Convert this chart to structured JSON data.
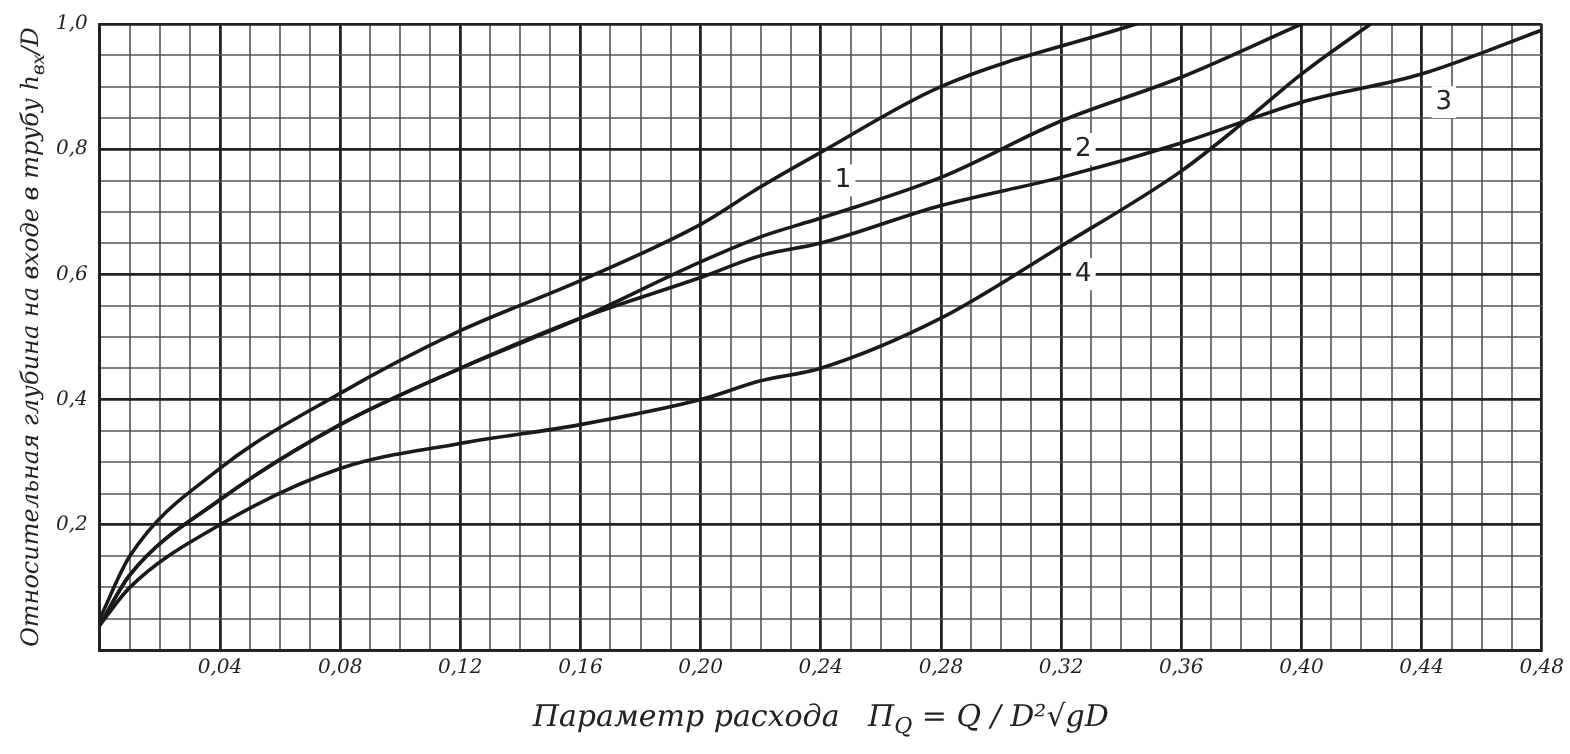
{
  "chart_data": {
    "type": "line",
    "xlabel": "Параметр расхода   П$_{Q}$ = Q / D²√gD",
    "ylabel": "Относительная глубина на входе в трубу h$_{вх}$/D",
    "series": [
      {
        "color": "#1a1a1a",
        "x": [
          0,
          0.01,
          0.04,
          0.08,
          0.12,
          0.16,
          0.2,
          0.22,
          0.24,
          0.28,
          0.345
        ],
        "values": [
          0.05,
          0.15,
          0.29,
          0.41,
          0.51,
          0.59,
          0.68,
          0.74,
          0.795,
          0.9,
          1.0
        ]
      },
      {
        "color": "#1a1a1a",
        "x": [
          0,
          0.01,
          0.04,
          0.08,
          0.12,
          0.16,
          0.2,
          0.22,
          0.24,
          0.28,
          0.32,
          0.36,
          0.4
        ],
        "values": [
          0.04,
          0.12,
          0.24,
          0.36,
          0.45,
          0.53,
          0.62,
          0.66,
          0.69,
          0.755,
          0.845,
          0.915,
          1.0
        ]
      },
      {
        "color": "#1a1a1a",
        "x": [
          0,
          0.01,
          0.04,
          0.08,
          0.12,
          0.16,
          0.2,
          0.22,
          0.24,
          0.28,
          0.32,
          0.36,
          0.4,
          0.44,
          0.48
        ],
        "values": [
          0.04,
          0.12,
          0.24,
          0.36,
          0.45,
          0.53,
          0.595,
          0.63,
          0.65,
          0.71,
          0.755,
          0.81,
          0.875,
          0.92,
          0.99
        ]
      },
      {
        "color": "#1a1a1a",
        "x": [
          0,
          0.01,
          0.04,
          0.08,
          0.12,
          0.16,
          0.2,
          0.22,
          0.24,
          0.28,
          0.32,
          0.36,
          0.38,
          0.4,
          0.423
        ],
        "values": [
          0.04,
          0.1,
          0.2,
          0.29,
          0.33,
          0.36,
          0.4,
          0.43,
          0.45,
          0.53,
          0.645,
          0.765,
          0.84,
          0.92,
          1.0
        ]
      }
    ],
    "annotations": [
      {
        "text": "1",
        "x": 0.24,
        "y": 0.795
      },
      {
        "text": "2",
        "x": 0.32,
        "y": 0.845
      },
      {
        "text": "3",
        "x": 0.44,
        "y": 0.92
      },
      {
        "text": "4",
        "x": 0.32,
        "y": 0.645
      }
    ],
    "xlim": [
      0,
      0.48
    ],
    "ylim": [
      0,
      1.0
    ],
    "xticks": [
      {
        "value": 0,
        "label": null
      },
      {
        "value": 0.01,
        "label": null
      },
      {
        "value": 0.02,
        "label": null
      },
      {
        "value": 0.03,
        "label": null
      },
      {
        "value": 0.04,
        "label": "0,04"
      },
      {
        "value": 0.05,
        "label": null
      },
      {
        "value": 0.06,
        "label": null
      },
      {
        "value": 0.07,
        "label": null
      },
      {
        "value": 0.08,
        "label": "0,08"
      },
      {
        "value": 0.09,
        "label": null
      },
      {
        "value": 0.1,
        "label": null
      },
      {
        "value": 0.11,
        "label": null
      },
      {
        "value": 0.12,
        "label": "0,12"
      },
      {
        "value": 0.13,
        "label": null
      },
      {
        "value": 0.14,
        "label": null
      },
      {
        "value": 0.15,
        "label": null
      },
      {
        "value": 0.16,
        "label": "0,16"
      },
      {
        "value": 0.17,
        "label": null
      },
      {
        "value": 0.18,
        "label": null
      },
      {
        "value": 0.19,
        "label": null
      },
      {
        "value": 0.2,
        "label": "0,20"
      },
      {
        "value": 0.21,
        "label": null
      },
      {
        "value": 0.22,
        "label": null
      },
      {
        "value": 0.23,
        "label": null
      },
      {
        "value": 0.24,
        "label": "0,24"
      },
      {
        "value": 0.25,
        "label": null
      },
      {
        "value": 0.26,
        "label": null
      },
      {
        "value": 0.27,
        "label": null
      },
      {
        "value": 0.28,
        "label": "0,28"
      },
      {
        "value": 0.29,
        "label": null
      },
      {
        "value": 0.3,
        "label": null
      },
      {
        "value": 0.31,
        "label": null
      },
      {
        "value": 0.32,
        "label": "0,32"
      },
      {
        "value": 0.33,
        "label": null
      },
      {
        "value": 0.34,
        "label": null
      },
      {
        "value": 0.35,
        "label": null
      },
      {
        "value": 0.36,
        "label": "0,36"
      },
      {
        "value": 0.37,
        "label": null
      },
      {
        "value": 0.38,
        "label": null
      },
      {
        "value": 0.39,
        "label": null
      },
      {
        "value": 0.4,
        "label": "0,40"
      },
      {
        "value": 0.41,
        "label": null
      },
      {
        "value": 0.42,
        "label": null
      },
      {
        "value": 0.43,
        "label": null
      },
      {
        "value": 0.44,
        "label": "0,44"
      },
      {
        "value": 0.45,
        "label": null
      },
      {
        "value": 0.46,
        "label": null
      },
      {
        "value": 0.47,
        "label": null
      },
      {
        "value": 0.48,
        "label": "0,48"
      }
    ],
    "yticks": [
      {
        "value": 0,
        "label": null
      },
      {
        "value": 0.05,
        "label": null
      },
      {
        "value": 0.1,
        "label": null
      },
      {
        "value": 0.15,
        "label": null
      },
      {
        "value": 0.2,
        "label": "0,2"
      },
      {
        "value": 0.25,
        "label": null
      },
      {
        "value": 0.3,
        "label": null
      },
      {
        "value": 0.35,
        "label": null
      },
      {
        "value": 0.4,
        "label": "0,4"
      },
      {
        "value": 0.45,
        "label": null
      },
      {
        "value": 0.5,
        "label": null
      },
      {
        "value": 0.55,
        "label": null
      },
      {
        "value": 0.6,
        "label": "0,6"
      },
      {
        "value": 0.65,
        "label": null
      },
      {
        "value": 0.7,
        "label": null
      },
      {
        "value": 0.75,
        "label": null
      },
      {
        "value": 0.8,
        "label": "0,8"
      },
      {
        "value": 0.85,
        "label": null
      },
      {
        "value": 0.9,
        "label": null
      },
      {
        "value": 0.95,
        "label": null
      },
      {
        "value": 1.0,
        "label": "1,0"
      }
    ],
    "grid": true,
    "legend": false,
    "marker": "none",
    "line_style": "solid"
  }
}
